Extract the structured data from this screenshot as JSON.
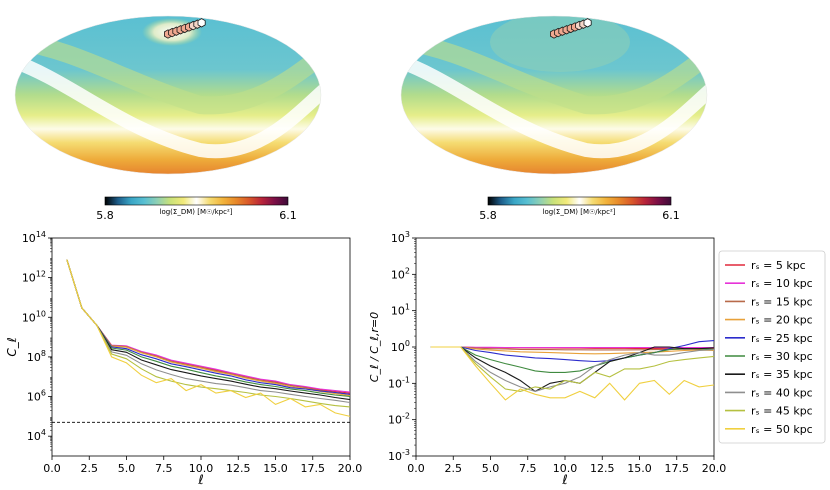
{
  "colors": {
    "cmap": [
      "#000000",
      "#1d5d8a",
      "#3aa6c6",
      "#58bfd2",
      "#8fd0b4",
      "#c9e27a",
      "#f2ea7a",
      "#ffffff",
      "#f5dc72",
      "#f2b43c",
      "#e88a2a",
      "#d9582a",
      "#b8243a",
      "#7a0e46",
      "#3d0b38"
    ],
    "threshold_line": "#000000"
  },
  "chart_data": [
    {
      "type": "heatmap",
      "subtype": "mollweide-sky-map",
      "name": "left-sky-map",
      "colorbar": {
        "min_label": "5.8",
        "max_label": "6.1",
        "label": "log(Σ$_{DM}$) [M$_\\odot$/kpc$^2$]",
        "label_display": "log(Σ_DM) [M☉/kpc²]"
      },
      "note": "dark-matter surface density map with satellite track marked by hexagons"
    },
    {
      "type": "heatmap",
      "subtype": "mollweide-sky-map",
      "name": "right-sky-map",
      "colorbar": {
        "min_label": "5.8",
        "max_label": "6.1",
        "label_display": "log(Σ_DM) [M☉/kpc²]"
      }
    },
    {
      "type": "line",
      "name": "power-spectrum",
      "xlabel": "ℓ",
      "ylabel": "C_ℓ",
      "yscale": "log",
      "xlim": [
        0,
        20
      ],
      "ylim": [
        1000,
        100000000000000
      ],
      "xticks": [
        "0.0",
        "2.5",
        "5.0",
        "7.5",
        "10.0",
        "12.5",
        "15.0",
        "17.5",
        "20.0"
      ],
      "yticks": [
        "10^4",
        "10^6",
        "10^8",
        "10^10",
        "10^12",
        "10^14"
      ],
      "hline": 50000,
      "x": [
        1,
        2,
        3,
        4,
        5,
        6,
        7,
        8,
        9,
        10,
        11,
        12,
        13,
        14,
        15,
        16,
        17,
        18,
        19,
        20
      ],
      "series": [
        {
          "name": "r_s = 5 kpc",
          "color": "#e0293b",
          "values": [
            8000000000000.0,
            30000000000.0,
            4000000000.0,
            380000000.0,
            350000000.0,
            180000000.0,
            120000000.0,
            65000000.0,
            45000000.0,
            32000000.0,
            22000000.0,
            15000000.0,
            10000000.0,
            7000000.0,
            5500000.0,
            3800000.0,
            3000000.0,
            2200000.0,
            1800000.0,
            1500000.0
          ]
        },
        {
          "name": "r_s = 10 kpc",
          "color": "#e633d8",
          "values": [
            8000000000000.0,
            30000000000.0,
            4000000000.0,
            390000000.0,
            360000000.0,
            190000000.0,
            125000000.0,
            68000000.0,
            48000000.0,
            34000000.0,
            24000000.0,
            16000000.0,
            11000000.0,
            7500000.0,
            6000000.0,
            4000000.0,
            3200000.0,
            2400000.0,
            2000000.0,
            1700000.0
          ]
        },
        {
          "name": "r_s = 15 kpc",
          "color": "#b86a4a",
          "values": [
            8000000000000.0,
            30000000000.0,
            4000000000.0,
            370000000.0,
            330000000.0,
            170000000.0,
            110000000.0,
            60000000.0,
            42000000.0,
            30000000.0,
            20000000.0,
            14000000.0,
            9500000.0,
            6600000.0,
            5200000.0,
            3600000.0,
            2800000.0,
            2000000.0,
            1600000.0,
            1300000.0
          ]
        },
        {
          "name": "r_s = 20 kpc",
          "color": "#e8a13a",
          "values": [
            8000000000000.0,
            30000000000.0,
            4000000000.0,
            350000000.0,
            310000000.0,
            160000000.0,
            100000000.0,
            55000000.0,
            38000000.0,
            27000000.0,
            18000000.0,
            13000000.0,
            8500000.0,
            6000000.0,
            4600000.0,
            3200000.0,
            2500000.0,
            1800000.0,
            1400000.0,
            1100000.0
          ]
        },
        {
          "name": "r_s = 25 kpc",
          "color": "#2c2ccc",
          "values": [
            8000000000000.0,
            30000000000.0,
            4000000000.0,
            320000000.0,
            260000000.0,
            130000000.0,
            80000000.0,
            45000000.0,
            32000000.0,
            22000000.0,
            15000000.0,
            11000000.0,
            7000000.0,
            5000000.0,
            4000000.0,
            2800000.0,
            2400000.0,
            1900000.0,
            1600000.0,
            1300000.0
          ]
        },
        {
          "name": "r_s = 30 kpc",
          "color": "#3f8a3f",
          "values": [
            8000000000000.0,
            30000000000.0,
            4000000000.0,
            280000000.0,
            220000000.0,
            100000000.0,
            60000000.0,
            34000000.0,
            24000000.0,
            16000000.0,
            11000000.0,
            8000000.0,
            5500000.0,
            4000000.0,
            3200000.0,
            2400000.0,
            2000000.0,
            1500000.0,
            1200000.0,
            1000000.0
          ]
        },
        {
          "name": "r_s = 35 kpc",
          "color": "#1a1a1a",
          "values": [
            8000000000000.0,
            30000000000.0,
            4000000000.0,
            230000000.0,
            170000000.0,
            70000000.0,
            40000000.0,
            23000000.0,
            16000000.0,
            11000000.0,
            8000000.0,
            6000000.0,
            4200000.0,
            3000000.0,
            2500000.0,
            1900000.0,
            1500000.0,
            1200000.0,
            900000.0,
            700000.0
          ]
        },
        {
          "name": "r_s = 40 kpc",
          "color": "#8f8f8f",
          "values": [
            8000000000000.0,
            30000000000.0,
            4000000000.0,
            180000000.0,
            120000000.0,
            45000000.0,
            22000000.0,
            13000000.0,
            8000000.0,
            6000000.0,
            4500000.0,
            3800000.0,
            2800000.0,
            2000000.0,
            1700000.0,
            1300000.0,
            1000000.0,
            800000.0,
            650000.0,
            500000.0
          ]
        },
        {
          "name": "r_s = 45 kpc",
          "color": "#b5c040",
          "values": [
            8000000000000.0,
            30000000000.0,
            4000000000.0,
            140000000.0,
            80000000.0,
            25000000.0,
            10000000.0,
            6000000.0,
            4000000.0,
            3000000.0,
            2500000.0,
            2000000.0,
            1600000.0,
            1200000.0,
            1000000.0,
            800000.0,
            600000.0,
            450000.0,
            350000.0,
            300000.0
          ]
        },
        {
          "name": "r_s = 50 kpc",
          "color": "#f0d040",
          "values": [
            8000000000000.0,
            30000000000.0,
            4000000000.0,
            100000000.0,
            50000000.0,
            12000000.0,
            5000000.0,
            8000000.0,
            2000000.0,
            4000000.0,
            1500000.0,
            2000000.0,
            900000.0,
            1500000.0,
            400000.0,
            800000.0,
            300000.0,
            400000.0,
            150000.0,
            100000.0
          ]
        }
      ]
    },
    {
      "type": "line",
      "name": "power-ratio",
      "xlabel": "ℓ",
      "ylabel": "C_ℓ / C_ℓ,r=0",
      "yscale": "log",
      "xlim": [
        0,
        20
      ],
      "ylim": [
        0.001,
        1000
      ],
      "xticks": [
        "0.0",
        "2.5",
        "5.0",
        "7.5",
        "10.0",
        "12.5",
        "15.0",
        "17.5",
        "20.0"
      ],
      "yticks": [
        "10^-3",
        "10^-2",
        "10^-1",
        "10^0",
        "10^1",
        "10^2",
        "10^3"
      ],
      "x": [
        1,
        2,
        3,
        4,
        5,
        6,
        7,
        8,
        9,
        10,
        11,
        12,
        13,
        14,
        15,
        16,
        17,
        18,
        19,
        20
      ],
      "series": [
        {
          "name": "r_s = 5 kpc",
          "color": "#e0293b",
          "values": [
            1,
            1,
            1,
            0.97,
            0.96,
            0.95,
            0.95,
            0.94,
            0.94,
            0.93,
            0.93,
            0.92,
            0.92,
            0.92,
            0.91,
            0.91,
            0.9,
            0.9,
            0.9,
            0.9
          ]
        },
        {
          "name": "r_s = 10 kpc",
          "color": "#e633d8",
          "values": [
            1,
            1,
            1,
            0.98,
            0.98,
            0.97,
            0.97,
            0.97,
            0.97,
            0.97,
            0.97,
            0.97,
            0.97,
            0.97,
            0.97,
            0.97,
            0.97,
            0.97,
            0.97,
            0.97
          ]
        },
        {
          "name": "r_s = 15 kpc",
          "color": "#b86a4a",
          "values": [
            1,
            1,
            1,
            0.93,
            0.9,
            0.88,
            0.86,
            0.85,
            0.85,
            0.84,
            0.84,
            0.83,
            0.83,
            0.83,
            0.84,
            0.85,
            0.86,
            0.87,
            0.88,
            0.88
          ]
        },
        {
          "name": "r_s = 20 kpc",
          "color": "#e8a13a",
          "values": [
            1,
            1,
            1,
            0.88,
            0.82,
            0.78,
            0.74,
            0.72,
            0.7,
            0.68,
            0.66,
            0.65,
            0.66,
            0.68,
            0.7,
            0.72,
            0.76,
            0.8,
            0.82,
            0.8
          ]
        },
        {
          "name": "r_s = 25 kpc",
          "color": "#2c2ccc",
          "values": [
            1,
            1,
            1,
            0.8,
            0.7,
            0.6,
            0.55,
            0.5,
            0.48,
            0.45,
            0.42,
            0.4,
            0.42,
            0.5,
            0.6,
            0.7,
            0.9,
            1.1,
            1.4,
            1.5
          ]
        },
        {
          "name": "r_s = 30 kpc",
          "color": "#3f8a3f",
          "values": [
            1,
            1,
            1,
            0.6,
            0.45,
            0.35,
            0.28,
            0.22,
            0.2,
            0.2,
            0.22,
            0.3,
            0.4,
            0.5,
            0.6,
            0.7,
            0.85,
            0.9,
            0.9,
            0.85
          ]
        },
        {
          "name": "r_s = 35 kpc",
          "color": "#1a1a1a",
          "values": [
            1,
            1,
            1,
            0.5,
            0.3,
            0.2,
            0.12,
            0.06,
            0.1,
            0.12,
            0.1,
            0.2,
            0.4,
            0.5,
            0.7,
            1,
            1,
            0.9,
            0.9,
            0.95
          ]
        },
        {
          "name": "r_s = 40 kpc",
          "color": "#8f8f8f",
          "values": [
            1,
            1,
            1,
            0.4,
            0.2,
            0.12,
            0.08,
            0.06,
            0.08,
            0.1,
            0.15,
            0.3,
            0.45,
            0.6,
            0.7,
            0.6,
            0.6,
            0.7,
            0.8,
            0.85
          ]
        },
        {
          "name": "r_s = 45 kpc",
          "color": "#b5c040",
          "values": [
            1,
            1,
            1,
            0.35,
            0.15,
            0.07,
            0.06,
            0.08,
            0.07,
            0.12,
            0.1,
            0.2,
            0.15,
            0.25,
            0.25,
            0.3,
            0.4,
            0.45,
            0.5,
            0.55
          ]
        },
        {
          "name": "r_s = 50 kpc",
          "color": "#f0d040",
          "values": [
            1,
            1,
            1,
            0.3,
            0.1,
            0.035,
            0.07,
            0.05,
            0.04,
            0.04,
            0.06,
            0.04,
            0.1,
            0.035,
            0.1,
            0.12,
            0.05,
            0.12,
            0.08,
            0.09
          ]
        }
      ]
    }
  ]
}
